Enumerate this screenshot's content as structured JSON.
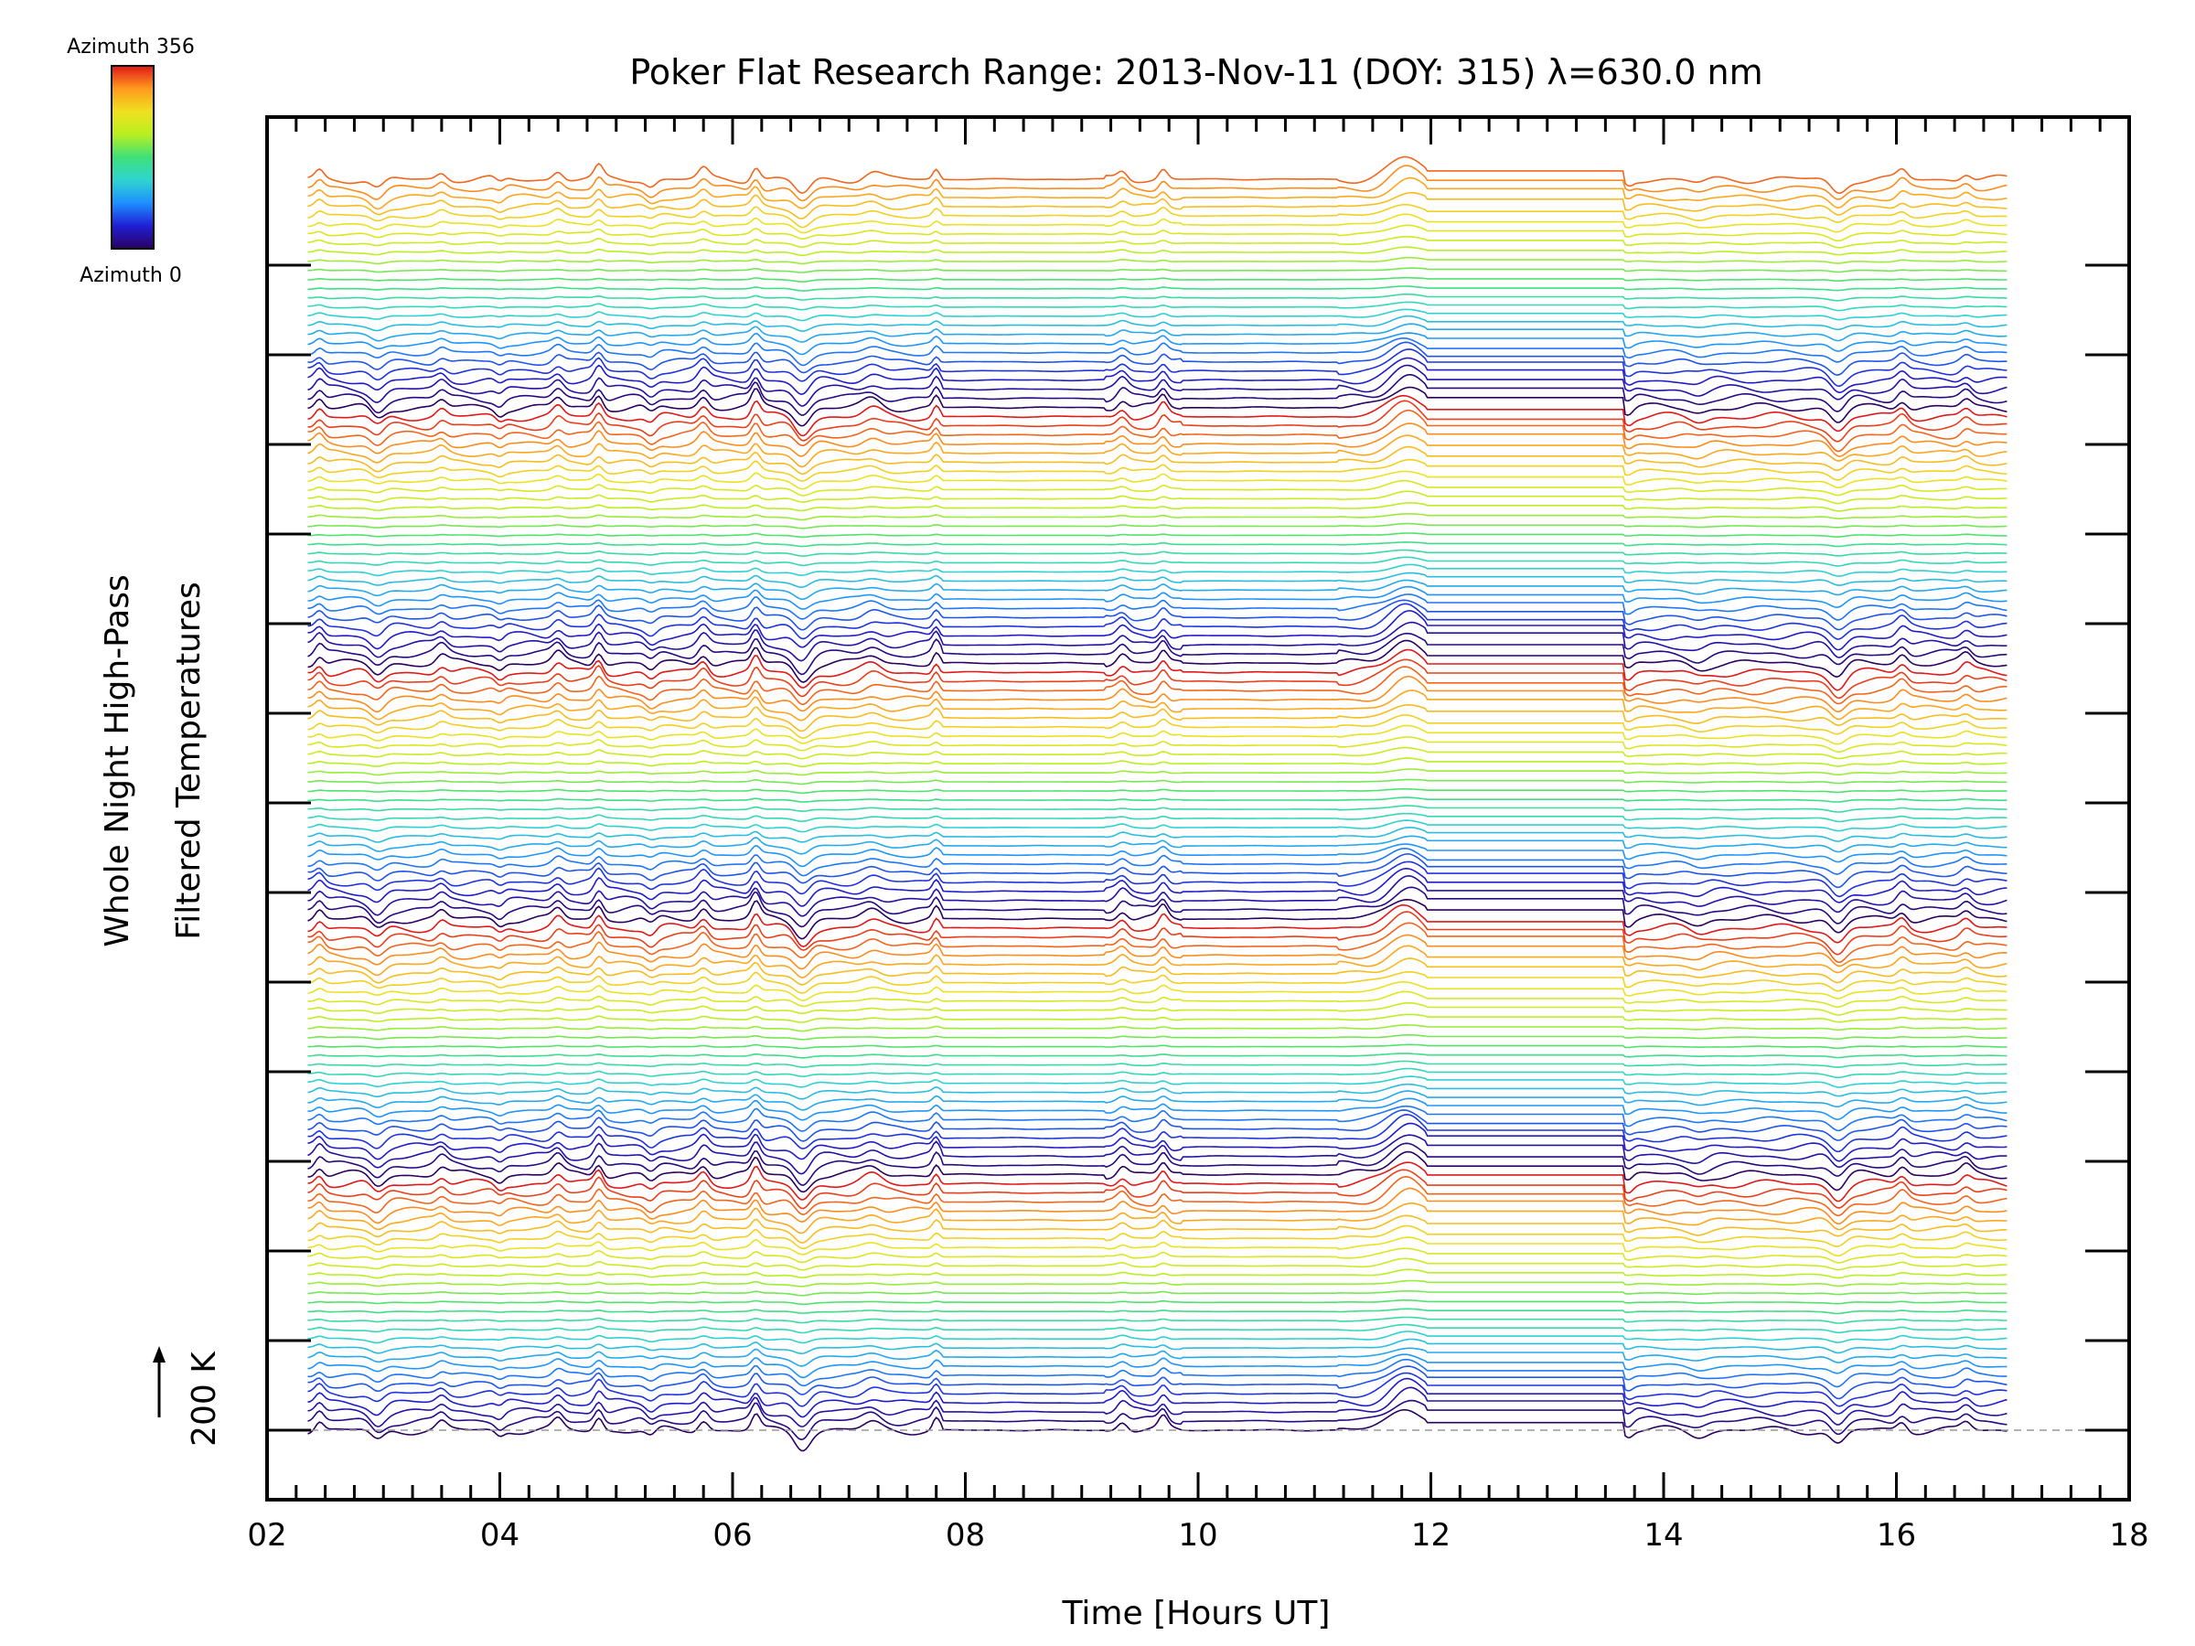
{
  "chart_data": {
    "type": "line",
    "title": "Poker Flat Research Range: 2013-Nov-11 (DOY: 315) λ=630.0 nm",
    "xlabel": "Time [Hours UT]",
    "ylabel_line1": "Whole Night High-Pass",
    "ylabel_line2": "Filtered Temperatures",
    "scale_label": "200 K",
    "xlim": [
      2,
      18
    ],
    "x_ticks": [
      "02",
      "04",
      "06",
      "08",
      "10",
      "12",
      "14",
      "16",
      "18"
    ],
    "x_data_range": [
      2.35,
      16.95
    ],
    "series_count": 138,
    "colorbar": {
      "top_label": "Azimuth 356",
      "bottom_label": "Azimuth 0",
      "colors": [
        "#2a0060",
        "#1f1fd6",
        "#1e90ff",
        "#2fd4d0",
        "#3fe07a",
        "#b8f020",
        "#f0e020",
        "#ff9a1e",
        "#e01818"
      ]
    },
    "grid": false,
    "legend": "none"
  }
}
